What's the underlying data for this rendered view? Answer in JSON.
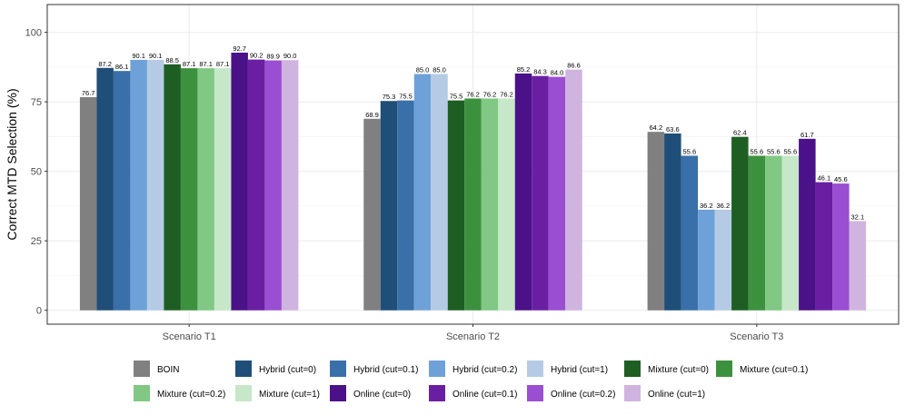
{
  "chart_data": {
    "type": "bar",
    "title": "",
    "xlabel": "",
    "ylabel": "Correct MTD Selection (%)",
    "ylim": [
      -5,
      110
    ],
    "yticks": [
      0,
      25,
      50,
      75,
      100
    ],
    "grid": true,
    "legend_position": "bottom",
    "categories": [
      "Scenario T1",
      "Scenario T2",
      "Scenario T3"
    ],
    "series": [
      {
        "name": "BOIN",
        "color": "#808080",
        "values": [
          76.7,
          68.9,
          64.2
        ]
      },
      {
        "name": "Hybrid (cut=0)",
        "color": "#1f4e79",
        "values": [
          87.2,
          75.3,
          63.6
        ]
      },
      {
        "name": "Hybrid (cut=0.1)",
        "color": "#3a70a9",
        "values": [
          86.1,
          75.5,
          55.6
        ]
      },
      {
        "name": "Hybrid (cut=0.2)",
        "color": "#6fa1d9",
        "values": [
          90.1,
          85.0,
          36.2
        ]
      },
      {
        "name": "Hybrid (cut=1)",
        "color": "#b5cbe5",
        "values": [
          90.1,
          85.0,
          36.2
        ]
      },
      {
        "name": "Mixture (cut=0)",
        "color": "#1e5e23",
        "values": [
          88.5,
          75.5,
          62.4
        ]
      },
      {
        "name": "Mixture (cut=0.1)",
        "color": "#3c913f",
        "values": [
          87.1,
          76.2,
          55.6
        ]
      },
      {
        "name": "Mixture (cut=0.2)",
        "color": "#80c883",
        "values": [
          87.1,
          76.2,
          55.6
        ]
      },
      {
        "name": "Mixture (cut=1)",
        "color": "#c6e7c8",
        "values": [
          87.1,
          76.2,
          55.6
        ]
      },
      {
        "name": "Online (cut=0)",
        "color": "#4a1189",
        "values": [
          92.7,
          85.2,
          61.7
        ]
      },
      {
        "name": "Online (cut=0.1)",
        "color": "#6a1fa3",
        "values": [
          90.2,
          84.3,
          46.1
        ]
      },
      {
        "name": "Online (cut=0.2)",
        "color": "#9a4ed1",
        "values": [
          89.9,
          84.0,
          45.6
        ]
      },
      {
        "name": "Online (cut=1)",
        "color": "#d0b4e0",
        "values": [
          90.0,
          86.6,
          32.1
        ]
      }
    ]
  }
}
